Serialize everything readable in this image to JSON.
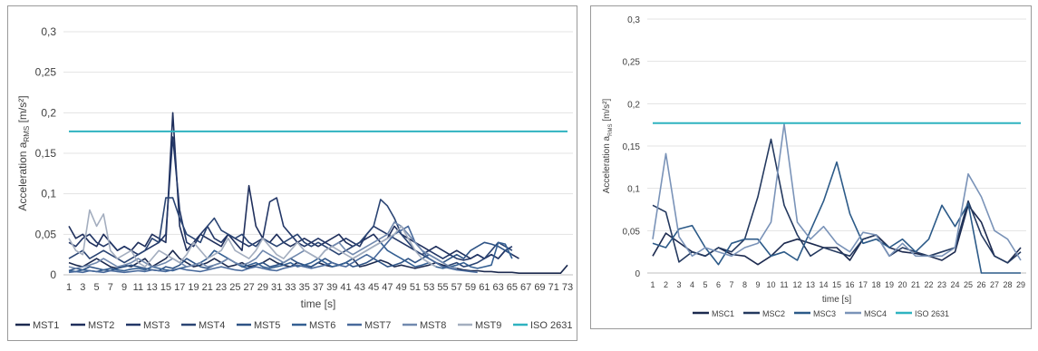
{
  "chart_data": [
    {
      "type": "line",
      "ylabel": "Acceleration a",
      "ylabel_sub": "RMS",
      "ylabel_unit": " [m/s²]",
      "xlabel": "time [s]",
      "ylim": [
        0,
        0.3
      ],
      "yticks": [
        0,
        0.05,
        0.1,
        0.15,
        0.2,
        0.25,
        0.3
      ],
      "ytick_labels": [
        "0",
        "0,05",
        "0,1",
        "0,15",
        "0,2",
        "0,25",
        "0,3"
      ],
      "x_min": 1,
      "x_max": 73,
      "xtick_labels": [
        "1",
        "3",
        "5",
        "7",
        "9",
        "11",
        "13",
        "15",
        "17",
        "19",
        "21",
        "23",
        "25",
        "27",
        "29",
        "31",
        "33",
        "35",
        "37",
        "39",
        "41",
        "43",
        "45",
        "47",
        "49",
        "51",
        "53",
        "55",
        "57",
        "59",
        "61",
        "63",
        "65",
        "67",
        "69",
        "71",
        "73"
      ],
      "grid": "horizontal",
      "legend_position": "bottom",
      "series": [
        {
          "name": "MST1",
          "color": "#1c2a4f",
          "start": 1,
          "values": [
            0.015,
            0.012,
            0.01,
            0.015,
            0.02,
            0.015,
            0.01,
            0.008,
            0.012,
            0.01,
            0.015,
            0.02,
            0.01,
            0.015,
            0.02,
            0.03,
            0.02,
            0.015,
            0.01,
            0.012,
            0.015,
            0.02,
            0.015,
            0.01,
            0.012,
            0.015,
            0.01,
            0.012,
            0.015,
            0.02,
            0.015,
            0.012,
            0.01,
            0.015,
            0.012,
            0.01,
            0.015,
            0.012,
            0.01,
            0.012,
            0.015,
            0.02,
            0.01,
            0.012,
            0.015,
            0.018,
            0.015,
            0.01,
            0.012,
            0.01,
            0.008,
            0.01,
            0.012,
            0.015,
            0.012,
            0.01,
            0.008,
            0.006,
            0.005,
            0.005,
            0.004,
            0.004,
            0.003,
            0.003,
            0.003,
            0.002,
            0.002,
            0.002,
            0.002,
            0.002,
            0.002,
            0.002,
            0.012
          ]
        },
        {
          "name": "MST2",
          "color": "#1f2f5c",
          "start": 1,
          "values": [
            0.06,
            0.045,
            0.05,
            0.04,
            0.035,
            0.05,
            0.04,
            0.03,
            0.035,
            0.03,
            0.04,
            0.035,
            0.05,
            0.045,
            0.04,
            0.2,
            0.06,
            0.03,
            0.04,
            0.05,
            0.045,
            0.04,
            0.035,
            0.05,
            0.04,
            0.03,
            0.11,
            0.06,
            0.045,
            0.04,
            0.05,
            0.04,
            0.035,
            0.04,
            0.045,
            0.04,
            0.035,
            0.04,
            0.045,
            0.05,
            0.04,
            0.035,
            0.04,
            0.045,
            0.05,
            0.04,
            0.045,
            0.06,
            0.05,
            0.045,
            0.04,
            0.035,
            0.03,
            0.035,
            0.03,
            0.025,
            0.03,
            0.025,
            0.02,
            0.025,
            0.02,
            0.025,
            0.02,
            0.03,
            0.025,
            0.02
          ]
        },
        {
          "name": "MST3",
          "color": "#233767",
          "start": 1,
          "values": [
            0.04,
            0.035,
            0.045,
            0.05,
            0.04,
            0.035,
            0.04,
            0.03,
            0.035,
            0.03,
            0.025,
            0.03,
            0.035,
            0.04,
            0.05,
            0.17,
            0.08,
            0.04,
            0.035,
            0.05,
            0.06,
            0.045,
            0.04,
            0.05,
            0.045,
            0.04,
            0.035,
            0.04,
            0.045,
            0.09,
            0.095,
            0.06,
            0.05,
            0.04,
            0.035,
            0.04,
            0.045,
            0.04,
            0.035,
            0.04,
            0.045,
            0.04,
            0.035,
            0.05,
            0.06,
            0.055,
            0.05,
            0.045,
            0.04,
            0.035,
            0.03,
            0.025,
            0.03,
            0.025,
            0.02,
            0.025,
            0.02,
            0.018,
            0.02,
            0.025,
            0.02,
            0.025,
            0.02,
            0.03,
            0.035
          ]
        },
        {
          "name": "MST4",
          "color": "#2a4473",
          "start": 1,
          "values": [
            0.02,
            0.025,
            0.03,
            0.02,
            0.025,
            0.03,
            0.025,
            0.02,
            0.015,
            0.02,
            0.025,
            0.03,
            0.045,
            0.04,
            0.095,
            0.095,
            0.07,
            0.05,
            0.045,
            0.04,
            0.06,
            0.07,
            0.055,
            0.05,
            0.045,
            0.05,
            0.04,
            0.035,
            0.045,
            0.04,
            0.035,
            0.04,
            0.045,
            0.05,
            0.04,
            0.035,
            0.04,
            0.035,
            0.03,
            0.025,
            0.03,
            0.035,
            0.04,
            0.05,
            0.06,
            0.093,
            0.085,
            0.07,
            0.05,
            0.04,
            0.03,
            0.025,
            0.02,
            0.015,
            0.01,
            0.012,
            0.015,
            0.01,
            0.012,
            0.015,
            0.02,
            0.03,
            0.04,
            0.035,
            0.03
          ]
        },
        {
          "name": "MST5",
          "color": "#2e5385",
          "start": 1,
          "values": [
            0.005,
            0.008,
            0.006,
            0.01,
            0.008,
            0.006,
            0.005,
            0.008,
            0.01,
            0.012,
            0.01,
            0.008,
            0.006,
            0.005,
            0.01,
            0.008,
            0.012,
            0.02,
            0.015,
            0.01,
            0.008,
            0.012,
            0.015,
            0.02,
            0.015,
            0.01,
            0.008,
            0.012,
            0.015,
            0.01,
            0.012,
            0.015,
            0.02,
            0.015,
            0.012,
            0.01,
            0.015,
            0.02,
            0.015,
            0.012,
            0.015,
            0.01,
            0.012,
            0.015,
            0.02,
            0.015,
            0.01,
            0.012,
            0.015,
            0.02,
            0.015,
            0.02,
            0.025,
            0.02,
            0.015,
            0.02,
            0.025,
            0.02,
            0.03,
            0.035,
            0.04,
            0.038,
            0.035,
            0.03,
            0.025
          ]
        },
        {
          "name": "MST6",
          "color": "#345f92",
          "start": 1,
          "values": [
            0.005,
            0.004,
            0.006,
            0.005,
            0.004,
            0.006,
            0.008,
            0.006,
            0.005,
            0.007,
            0.008,
            0.006,
            0.01,
            0.008,
            0.006,
            0.005,
            0.008,
            0.01,
            0.012,
            0.015,
            0.02,
            0.03,
            0.025,
            0.02,
            0.015,
            0.01,
            0.012,
            0.015,
            0.01,
            0.008,
            0.01,
            0.012,
            0.015,
            0.01,
            0.012,
            0.015,
            0.02,
            0.015,
            0.01,
            0.012,
            0.015,
            0.02,
            0.025,
            0.03,
            0.035,
            0.04,
            0.03,
            0.025,
            0.02,
            0.015,
            0.01,
            0.012,
            0.015,
            0.01,
            0.008,
            0.01,
            0.012,
            0.015,
            0.01,
            0.008,
            0.01,
            0.012,
            0.04,
            0.038,
            0.02
          ]
        },
        {
          "name": "MST7",
          "color": "#48699b",
          "start": 1,
          "values": [
            0.003,
            0.004,
            0.003,
            0.005,
            0.004,
            0.003,
            0.005,
            0.004,
            0.003,
            0.004,
            0.005,
            0.004,
            0.006,
            0.005,
            0.004,
            0.006,
            0.008,
            0.006,
            0.005,
            0.004,
            0.006,
            0.008,
            0.01,
            0.008,
            0.006,
            0.005,
            0.008,
            0.01,
            0.008,
            0.006,
            0.005,
            0.008,
            0.01,
            0.012,
            0.01,
            0.008,
            0.01,
            0.012,
            0.015,
            0.012,
            0.01,
            0.015,
            0.02,
            0.025,
            0.02,
            0.03,
            0.04,
            0.05,
            0.055,
            0.06,
            0.04,
            0.03,
            0.02,
            0.015,
            0.01,
            0.008,
            0.006,
            0.005,
            0.004,
            0.003
          ]
        },
        {
          "name": "MST8",
          "color": "#7189ae",
          "start": 1,
          "values": [
            0.01,
            0.008,
            0.01,
            0.012,
            0.015,
            0.02,
            0.015,
            0.01,
            0.012,
            0.015,
            0.02,
            0.015,
            0.01,
            0.012,
            0.015,
            0.02,
            0.015,
            0.01,
            0.012,
            0.015,
            0.01,
            0.012,
            0.015,
            0.02,
            0.015,
            0.012,
            0.015,
            0.02,
            0.03,
            0.025,
            0.02,
            0.015,
            0.02,
            0.025,
            0.03,
            0.025,
            0.02,
            0.03,
            0.035,
            0.04,
            0.03,
            0.025,
            0.03,
            0.035,
            0.04,
            0.045,
            0.05,
            0.065,
            0.06,
            0.05,
            0.04,
            0.03,
            0.025,
            0.02,
            0.015,
            0.01,
            0.008
          ]
        },
        {
          "name": "MST9",
          "color": "#a4aebf",
          "start": 1,
          "values": [
            0.045,
            0.03,
            0.025,
            0.08,
            0.06,
            0.075,
            0.03,
            0.02,
            0.025,
            0.03,
            0.015,
            0.01,
            0.02,
            0.03,
            0.025,
            0.02,
            0.015,
            0.025,
            0.04,
            0.03,
            0.02,
            0.025,
            0.03,
            0.045,
            0.03,
            0.025,
            0.02,
            0.03,
            0.045,
            0.035,
            0.025,
            0.02,
            0.03,
            0.04,
            0.03,
            0.025,
            0.02,
            0.03,
            0.035,
            0.03,
            0.025,
            0.02,
            0.025,
            0.03,
            0.035,
            0.04,
            0.045,
            0.05,
            0.06,
            0.045,
            0.03,
            0.02,
            0.015,
            0.01
          ]
        },
        {
          "name": "ISO 2631",
          "color": "#2fb3c0",
          "start": 1,
          "values": [
            0.177,
            0.177,
            0.177,
            0.177,
            0.177,
            0.177,
            0.177,
            0.177,
            0.177,
            0.177,
            0.177,
            0.177,
            0.177,
            0.177,
            0.177,
            0.177,
            0.177,
            0.177,
            0.177,
            0.177,
            0.177,
            0.177,
            0.177,
            0.177,
            0.177,
            0.177,
            0.177,
            0.177,
            0.177,
            0.177,
            0.177,
            0.177,
            0.177,
            0.177,
            0.177,
            0.177,
            0.177,
            0.177,
            0.177,
            0.177,
            0.177,
            0.177,
            0.177,
            0.177,
            0.177,
            0.177,
            0.177,
            0.177,
            0.177,
            0.177,
            0.177,
            0.177,
            0.177,
            0.177,
            0.177,
            0.177,
            0.177,
            0.177,
            0.177,
            0.177,
            0.177,
            0.177,
            0.177,
            0.177,
            0.177,
            0.177,
            0.177,
            0.177,
            0.177,
            0.177,
            0.177,
            0.177,
            0.177
          ]
        }
      ]
    },
    {
      "type": "line",
      "ylabel": "Acceleration a",
      "ylabel_sub": "RMS",
      "ylabel_unit": " [m/s²]",
      "xlabel": "time [s]",
      "ylim": [
        0,
        0.3
      ],
      "yticks": [
        0,
        0.05,
        0.1,
        0.15,
        0.2,
        0.25,
        0.3
      ],
      "ytick_labels": [
        "0",
        "0,05",
        "0,1",
        "0,15",
        "0,2",
        "0,25",
        "0,3"
      ],
      "x_min": 1,
      "x_max": 29,
      "xtick_labels": [
        "1",
        "2",
        "3",
        "4",
        "5",
        "6",
        "7",
        "8",
        "9",
        "10",
        "11",
        "12",
        "13",
        "14",
        "15",
        "16",
        "17",
        "18",
        "19",
        "20",
        "21",
        "22",
        "23",
        "24",
        "25",
        "26",
        "27",
        "28",
        "29"
      ],
      "grid": "horizontal",
      "legend_position": "bottom",
      "series": [
        {
          "name": "MSC1",
          "color": "#1c2a4f",
          "start": 1,
          "values": [
            0.02,
            0.047,
            0.036,
            0.025,
            0.02,
            0.03,
            0.022,
            0.02,
            0.01,
            0.02,
            0.035,
            0.04,
            0.035,
            0.03,
            0.03,
            0.015,
            0.04,
            0.045,
            0.03,
            0.025,
            0.023,
            0.02,
            0.015,
            0.025,
            0.08,
            0.06,
            0.02,
            0.012,
            0.03
          ]
        },
        {
          "name": "MSC2",
          "color": "#24395f",
          "start": 1,
          "values": [
            0.08,
            0.072,
            0.013,
            0.025,
            0.02,
            0.03,
            0.025,
            0.04,
            0.09,
            0.158,
            0.08,
            0.045,
            0.02,
            0.03,
            0.025,
            0.02,
            0.04,
            0.045,
            0.02,
            0.03,
            0.025,
            0.02,
            0.025,
            0.03,
            0.085,
            0.045,
            0.02,
            0.012,
            0.025
          ]
        },
        {
          "name": "MSC3",
          "color": "#2c5a88",
          "start": 1,
          "values": [
            0.035,
            0.03,
            0.052,
            0.056,
            0.03,
            0.01,
            0.035,
            0.04,
            0.04,
            0.02,
            0.025,
            0.015,
            0.05,
            0.085,
            0.131,
            0.07,
            0.035,
            0.04,
            0.03,
            0.04,
            0.025,
            0.04,
            0.08,
            0.055,
            0.082,
            0,
            0,
            0,
            0
          ]
        },
        {
          "name": "MSC4",
          "color": "#7a93b8",
          "start": 1,
          "values": [
            0.04,
            0.141,
            0.043,
            0.02,
            0.03,
            0.025,
            0.02,
            0.03,
            0.035,
            0.06,
            0.176,
            0.06,
            0.04,
            0.055,
            0.035,
            0.025,
            0.048,
            0.045,
            0.02,
            0.035,
            0.02,
            0.02,
            0.02,
            0.03,
            0.117,
            0.09,
            0.05,
            0.04,
            0.015
          ]
        },
        {
          "name": "ISO 2631",
          "color": "#2fb3c0",
          "start": 1,
          "values": [
            0.177,
            0.177,
            0.177,
            0.177,
            0.177,
            0.177,
            0.177,
            0.177,
            0.177,
            0.177,
            0.177,
            0.177,
            0.177,
            0.177,
            0.177,
            0.177,
            0.177,
            0.177,
            0.177,
            0.177,
            0.177,
            0.177,
            0.177,
            0.177,
            0.177,
            0.177,
            0.177,
            0.177,
            0.177
          ]
        }
      ]
    }
  ]
}
